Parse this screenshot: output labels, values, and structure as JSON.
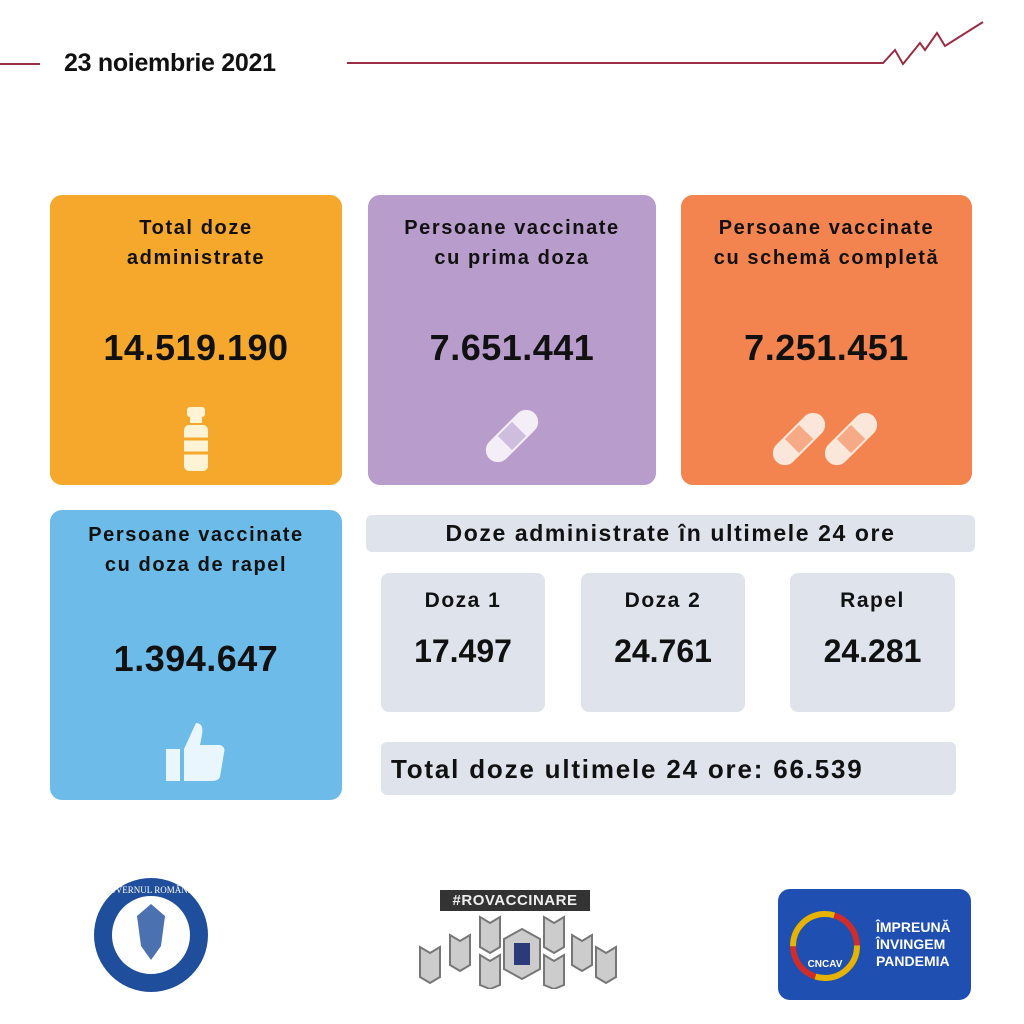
{
  "header": {
    "date": "23 noiembrie 2021",
    "accent": "#9b2d45"
  },
  "cards": [
    {
      "title_l1": "Total doze",
      "title_l2": "administrate",
      "value": "14.519.190",
      "color": "#f5a82b",
      "icon": "vaccine-vial-icon"
    },
    {
      "title_l1": "Persoane vaccinate",
      "title_l2": "cu prima doza",
      "value": "7.651.441",
      "color": "#b89ccc",
      "icon": "bandage-icon"
    },
    {
      "title_l1": "Persoane vaccinate",
      "title_l2": "cu schemă completă",
      "value": "7.251.451",
      "color": "#f4844f",
      "icon": "two-bandages-icon"
    },
    {
      "title_l1": "Persoane  vaccinate",
      "title_l2": "cu doza de rapel",
      "value": "1.394.647",
      "color": "#6cbbe8",
      "icon": "thumbs-up-icon"
    }
  ],
  "last24": {
    "heading": "Doze administrate în ultimele 24 ore",
    "items": [
      {
        "label": "Doza 1",
        "value": "17.497"
      },
      {
        "label": "Doza 2",
        "value": "24.761"
      },
      {
        "label": "Rapel",
        "value": "24.281"
      }
    ],
    "total": "Total doze ultimele 24 ore: 66.539"
  },
  "logos": {
    "gov": "GUVERNUL ROMÂNIEI",
    "rovacc": "#ROVACCINARE",
    "cncav": "CNCAV",
    "cncav_text_l1": "ÎMPREUNĂ",
    "cncav_text_l2": "ÎNVINGEM",
    "cncav_text_l3": "PANDEMIA"
  }
}
